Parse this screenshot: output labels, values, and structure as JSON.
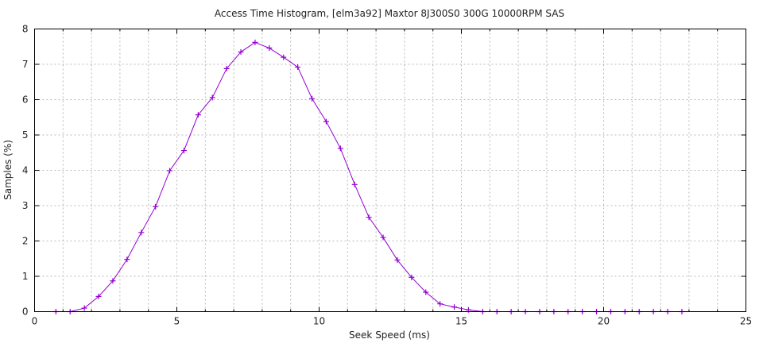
{
  "chart_data": {
    "type": "line",
    "title": "Access Time Histogram, [elm3a92] Maxtor 8J300S0 300G 10000RPM SAS",
    "xlabel": "Seek Speed (ms)",
    "ylabel": "Samples (%)",
    "xlim": [
      0,
      25
    ],
    "ylim": [
      0,
      8
    ],
    "xticks": [
      0,
      5,
      10,
      15,
      20,
      25
    ],
    "yticks": [
      0,
      1,
      2,
      3,
      4,
      5,
      6,
      7,
      8
    ],
    "grid": true,
    "marker": "plus",
    "color": "#9400d3",
    "series": [
      {
        "x": [
          0.75,
          1.25,
          1.75,
          2.25,
          2.75,
          3.25,
          3.75,
          4.25,
          4.75,
          5.25,
          5.75,
          6.25,
          6.75,
          7.25,
          7.75,
          8.25,
          8.75,
          9.25,
          9.75,
          10.25,
          10.75,
          11.25,
          11.75,
          12.25,
          12.75,
          13.25,
          13.75,
          14.25,
          14.75,
          15.25,
          15.75,
          16.25,
          16.75,
          17.25,
          17.75,
          18.25,
          18.75,
          19.25,
          19.75,
          20.25,
          20.75,
          21.25,
          21.75,
          22.25,
          22.75
        ],
        "y": [
          0.0,
          0.0,
          0.1,
          0.43,
          0.87,
          1.48,
          2.24,
          2.97,
          3.99,
          4.56,
          5.57,
          6.06,
          6.88,
          7.35,
          7.62,
          7.46,
          7.2,
          6.92,
          6.03,
          5.38,
          4.62,
          3.6,
          2.67,
          2.1,
          1.46,
          0.97,
          0.55,
          0.22,
          0.13,
          0.05,
          0.0,
          0.0,
          0.0,
          0.0,
          0.0,
          0.0,
          0.0,
          0.0,
          0.0,
          0.0,
          0.0,
          0.0,
          0.0,
          0.0,
          0.0
        ]
      }
    ]
  }
}
